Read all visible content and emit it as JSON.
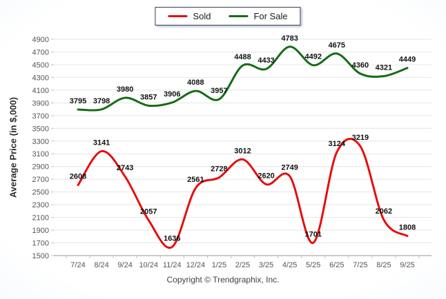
{
  "legend": {
    "items": [
      {
        "label": "Sold",
        "color": "#e60d0d"
      },
      {
        "label": "For Sale",
        "color": "#146c14"
      }
    ]
  },
  "chart_data": {
    "type": "line",
    "title": "",
    "xlabel": "",
    "ylabel": "Average Price (in $,000)",
    "categories": [
      "7/24",
      "8/24",
      "9/24",
      "10/24",
      "11/24",
      "12/24",
      "1/25",
      "2/25",
      "3/25",
      "4/25",
      "5/25",
      "6/25",
      "7/25",
      "8/25",
      "9/25"
    ],
    "series": [
      {
        "name": "Sold",
        "color": "#e60d0d",
        "values": [
          2608,
          3141,
          2743,
          2057,
          1636,
          2561,
          2728,
          3012,
          2620,
          2749,
          1701,
          3124,
          3219,
          2062,
          1808
        ]
      },
      {
        "name": "For Sale",
        "color": "#146c14",
        "values": [
          3795,
          3798,
          3980,
          3857,
          3906,
          4088,
          3957,
          4488,
          4433,
          4783,
          4492,
          4675,
          4360,
          4321,
          4449
        ]
      }
    ],
    "ylim": [
      1500,
      4900
    ],
    "y_ticks": [
      1500,
      1700,
      1900,
      2100,
      2300,
      2500,
      2700,
      2900,
      3100,
      3300,
      3500,
      3700,
      3900,
      4100,
      4300,
      4500,
      4700,
      4900
    ],
    "grid": true,
    "smooth": true,
    "data_labels": true,
    "legend_position": "top"
  },
  "footer": {
    "copyright": "Copyright © Trendgraphix, Inc."
  }
}
